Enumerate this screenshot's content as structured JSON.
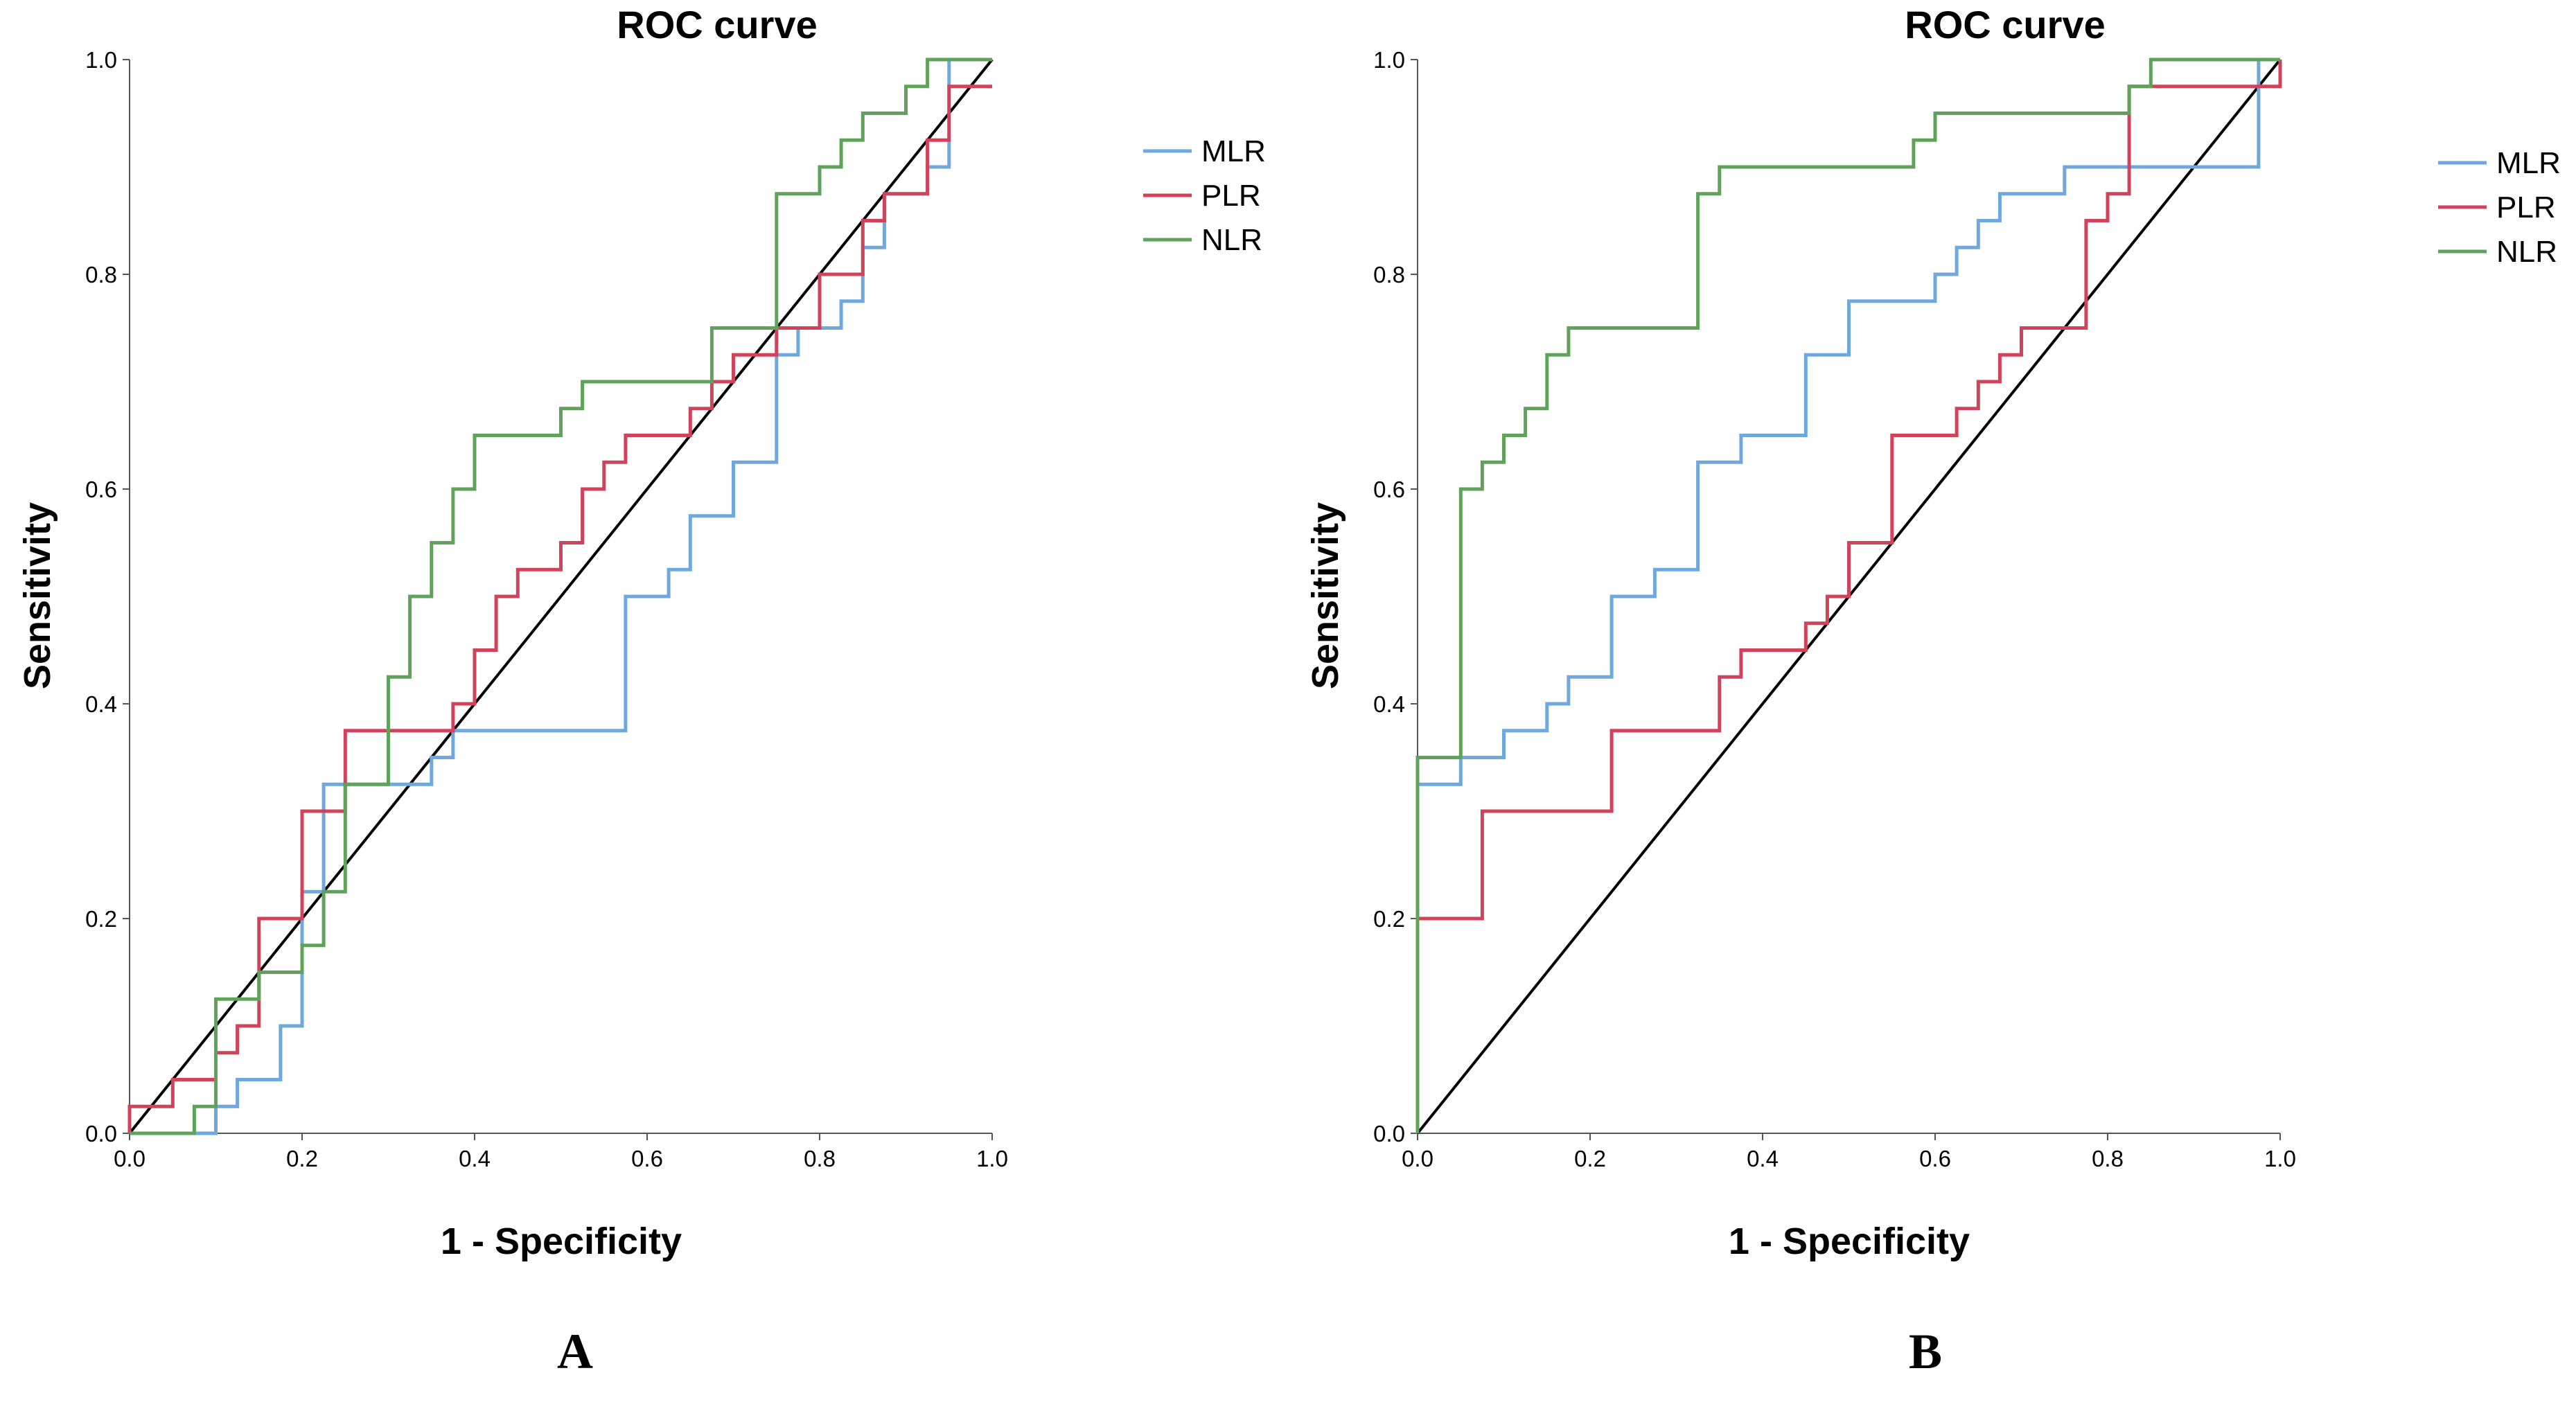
{
  "chart_data": [
    {
      "type": "line",
      "panel_label": "A",
      "title": "ROC curve",
      "xlabel": "1 - Specificity",
      "ylabel": "Sensitivity",
      "xlim": [
        0,
        1
      ],
      "ylim": [
        0,
        1
      ],
      "x_ticks": [
        "0.0",
        "0.2",
        "0.4",
        "0.6",
        "0.8",
        "1.0"
      ],
      "y_ticks": [
        "0.0",
        "0.2",
        "0.4",
        "0.6",
        "0.8",
        "1.0"
      ],
      "grid": false,
      "legend_position": "top-right",
      "reference_line": {
        "x": [
          0,
          1
        ],
        "y": [
          0,
          1
        ],
        "color": "#000000"
      },
      "series": [
        {
          "name": "MLR",
          "color": "#6fa8dc",
          "x": [
            0.0,
            0.1,
            0.1,
            0.125,
            0.125,
            0.175,
            0.175,
            0.2,
            0.2,
            0.225,
            0.225,
            0.35,
            0.35,
            0.375,
            0.375,
            0.575,
            0.575,
            0.625,
            0.625,
            0.65,
            0.65,
            0.7,
            0.7,
            0.75,
            0.75,
            0.775,
            0.775,
            0.825,
            0.825,
            0.85,
            0.85,
            0.875,
            0.875,
            0.925,
            0.925,
            0.95,
            0.95,
            1.0,
            1.0
          ],
          "y": [
            0.0,
            0.0,
            0.025,
            0.025,
            0.05,
            0.05,
            0.1,
            0.1,
            0.225,
            0.225,
            0.325,
            0.325,
            0.35,
            0.35,
            0.375,
            0.375,
            0.5,
            0.5,
            0.525,
            0.525,
            0.575,
            0.575,
            0.625,
            0.625,
            0.725,
            0.725,
            0.75,
            0.75,
            0.775,
            0.775,
            0.825,
            0.825,
            0.875,
            0.875,
            0.9,
            0.9,
            1.0,
            1.0,
            1.0
          ]
        },
        {
          "name": "PLR",
          "color": "#d0435a",
          "x": [
            0.0,
            0.0,
            0.05,
            0.05,
            0.1,
            0.1,
            0.125,
            0.125,
            0.15,
            0.15,
            0.2,
            0.2,
            0.25,
            0.25,
            0.375,
            0.375,
            0.4,
            0.4,
            0.425,
            0.425,
            0.45,
            0.45,
            0.5,
            0.5,
            0.525,
            0.525,
            0.55,
            0.55,
            0.575,
            0.575,
            0.65,
            0.65,
            0.675,
            0.675,
            0.7,
            0.7,
            0.75,
            0.75,
            0.8,
            0.8,
            0.85,
            0.85,
            0.875,
            0.875,
            0.925,
            0.925,
            0.95,
            0.95,
            1.0
          ],
          "y": [
            0.0,
            0.025,
            0.025,
            0.05,
            0.05,
            0.075,
            0.075,
            0.1,
            0.1,
            0.2,
            0.2,
            0.3,
            0.3,
            0.375,
            0.375,
            0.4,
            0.4,
            0.45,
            0.45,
            0.5,
            0.5,
            0.525,
            0.525,
            0.55,
            0.55,
            0.6,
            0.6,
            0.625,
            0.625,
            0.65,
            0.65,
            0.675,
            0.675,
            0.7,
            0.7,
            0.725,
            0.725,
            0.75,
            0.75,
            0.8,
            0.8,
            0.85,
            0.85,
            0.875,
            0.875,
            0.925,
            0.925,
            0.975,
            0.975
          ]
        },
        {
          "name": "NLR",
          "color": "#5fa25a",
          "x": [
            0.0,
            0.075,
            0.075,
            0.1,
            0.1,
            0.15,
            0.15,
            0.2,
            0.2,
            0.225,
            0.225,
            0.25,
            0.25,
            0.3,
            0.3,
            0.325,
            0.325,
            0.35,
            0.35,
            0.375,
            0.375,
            0.4,
            0.4,
            0.5,
            0.5,
            0.525,
            0.525,
            0.675,
            0.675,
            0.75,
            0.75,
            0.8,
            0.8,
            0.825,
            0.825,
            0.85,
            0.85,
            0.9,
            0.9,
            0.925,
            0.925,
            1.0,
            1.0
          ],
          "y": [
            0.0,
            0.0,
            0.025,
            0.025,
            0.125,
            0.125,
            0.15,
            0.15,
            0.175,
            0.175,
            0.225,
            0.225,
            0.325,
            0.325,
            0.425,
            0.425,
            0.5,
            0.5,
            0.55,
            0.55,
            0.6,
            0.6,
            0.65,
            0.65,
            0.675,
            0.675,
            0.7,
            0.7,
            0.75,
            0.75,
            0.875,
            0.875,
            0.9,
            0.9,
            0.925,
            0.925,
            0.95,
            0.95,
            0.975,
            0.975,
            1.0,
            1.0,
            1.0
          ]
        }
      ]
    },
    {
      "type": "line",
      "panel_label": "B",
      "title": "ROC curve",
      "xlabel": "1 - Specificity",
      "ylabel": "Sensitivity",
      "xlim": [
        0,
        1
      ],
      "ylim": [
        0,
        1
      ],
      "x_ticks": [
        "0.0",
        "0.2",
        "0.4",
        "0.6",
        "0.8",
        "1.0"
      ],
      "y_ticks": [
        "0.0",
        "0.2",
        "0.4",
        "0.6",
        "0.8",
        "1.0"
      ],
      "grid": false,
      "legend_position": "top-right",
      "reference_line": {
        "x": [
          0,
          1
        ],
        "y": [
          0,
          1
        ],
        "color": "#000000"
      },
      "series": [
        {
          "name": "MLR",
          "color": "#6fa8dc",
          "x": [
            0.0,
            0.0,
            0.05,
            0.05,
            0.1,
            0.1,
            0.15,
            0.15,
            0.175,
            0.175,
            0.225,
            0.225,
            0.275,
            0.275,
            0.325,
            0.325,
            0.375,
            0.375,
            0.45,
            0.45,
            0.5,
            0.5,
            0.6,
            0.6,
            0.625,
            0.625,
            0.65,
            0.65,
            0.675,
            0.675,
            0.75,
            0.75,
            0.975,
            0.975,
            1.0
          ],
          "y": [
            0.0,
            0.325,
            0.325,
            0.35,
            0.35,
            0.375,
            0.375,
            0.4,
            0.4,
            0.425,
            0.425,
            0.5,
            0.5,
            0.525,
            0.525,
            0.625,
            0.625,
            0.65,
            0.65,
            0.725,
            0.725,
            0.775,
            0.775,
            0.8,
            0.8,
            0.825,
            0.825,
            0.85,
            0.85,
            0.875,
            0.875,
            0.9,
            0.9,
            1.0,
            1.0
          ]
        },
        {
          "name": "PLR",
          "color": "#d0435a",
          "x": [
            0.0,
            0.0,
            0.075,
            0.075,
            0.225,
            0.225,
            0.35,
            0.35,
            0.375,
            0.375,
            0.45,
            0.45,
            0.475,
            0.475,
            0.5,
            0.5,
            0.55,
            0.55,
            0.625,
            0.625,
            0.65,
            0.65,
            0.675,
            0.675,
            0.7,
            0.7,
            0.775,
            0.775,
            0.8,
            0.8,
            0.825,
            0.825,
            0.85,
            0.85,
            1.0,
            1.0
          ],
          "y": [
            0.0,
            0.2,
            0.2,
            0.3,
            0.3,
            0.375,
            0.375,
            0.425,
            0.425,
            0.45,
            0.45,
            0.475,
            0.475,
            0.5,
            0.5,
            0.55,
            0.55,
            0.65,
            0.65,
            0.675,
            0.675,
            0.7,
            0.7,
            0.725,
            0.725,
            0.75,
            0.75,
            0.85,
            0.85,
            0.875,
            0.875,
            0.975,
            0.975,
            0.975,
            0.975,
            1.0
          ]
        },
        {
          "name": "NLR",
          "color": "#5fa25a",
          "x": [
            0.0,
            0.0,
            0.05,
            0.05,
            0.075,
            0.075,
            0.1,
            0.1,
            0.125,
            0.125,
            0.15,
            0.15,
            0.175,
            0.175,
            0.325,
            0.325,
            0.35,
            0.35,
            0.575,
            0.575,
            0.6,
            0.6,
            0.825,
            0.825,
            0.85,
            0.85,
            1.0
          ],
          "y": [
            0.0,
            0.35,
            0.35,
            0.6,
            0.6,
            0.625,
            0.625,
            0.65,
            0.65,
            0.675,
            0.675,
            0.725,
            0.725,
            0.75,
            0.75,
            0.875,
            0.875,
            0.9,
            0.9,
            0.925,
            0.925,
            0.95,
            0.95,
            0.975,
            0.975,
            1.0,
            1.0
          ]
        }
      ]
    }
  ]
}
